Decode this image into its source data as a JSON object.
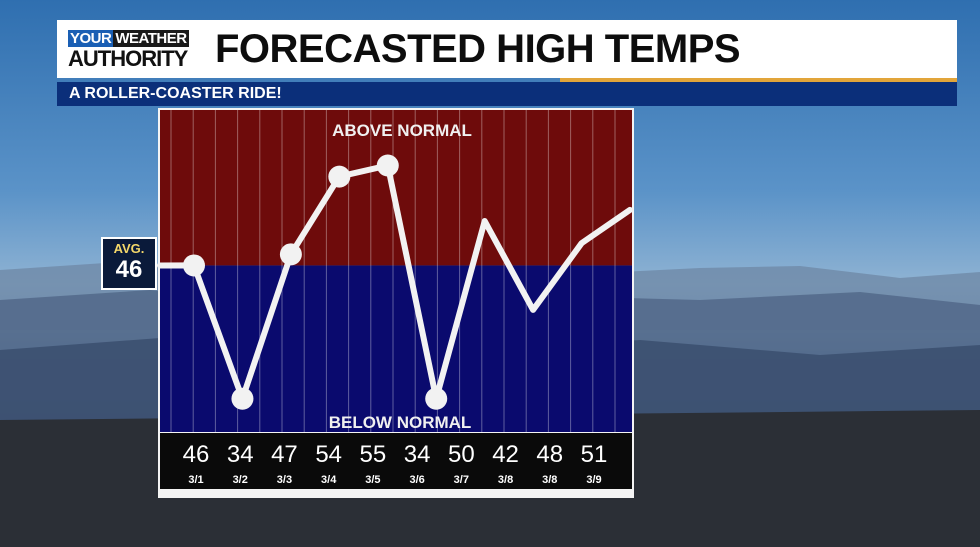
{
  "header": {
    "logo_top_word1": "YOUR",
    "logo_top_word2": "WEATHER",
    "logo_bottom": "AUTHORITY",
    "title": "FORECASTED HIGH TEMPS",
    "subtitle": "A ROLLER-COASTER RIDE!"
  },
  "avg_badge": {
    "label": "AVG.",
    "value": "46"
  },
  "colors": {
    "above_zone": "#6e0b0b",
    "below_zone": "#0a0a6e",
    "line": "#f2f2f2",
    "accent": "#e2a53a",
    "subtitle_bar": "#0b2f7a"
  },
  "chart_data": {
    "type": "line",
    "zone_labels": {
      "above": "ABOVE NORMAL",
      "below": "BELOW NORMAL"
    },
    "average": 46,
    "categories": [
      "3/1",
      "3/2",
      "3/3",
      "3/4",
      "3/5",
      "3/6",
      "3/7",
      "3/8",
      "3/8",
      "3/9"
    ],
    "values": [
      46,
      34,
      47,
      54,
      55,
      34,
      50,
      42,
      48,
      51
    ],
    "ylim": [
      31,
      60
    ],
    "grid": true,
    "markers_on": [
      true,
      true,
      true,
      true,
      true,
      true,
      false,
      false,
      false,
      false
    ]
  }
}
